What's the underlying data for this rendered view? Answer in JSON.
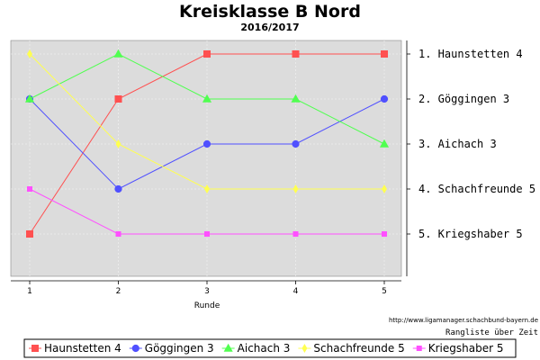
{
  "chart_data": {
    "type": "line",
    "title": "Kreisklasse B Nord",
    "subtitle": "2016/2017",
    "xlabel": "Runde",
    "x": [
      1,
      2,
      3,
      4,
      5
    ],
    "ylim": [
      1,
      5
    ],
    "y_inverted": true,
    "grid": true,
    "background": "#dcdcdc",
    "rank_labels": [
      "1. Haunstetten 4",
      "2. Göggingen 3",
      "3. Aichach 3",
      "4. Schachfreunde 5",
      "5. Kriegshaber 5"
    ],
    "series": [
      {
        "name": "Haunstetten 4",
        "values": [
          5,
          2,
          1,
          1,
          1
        ],
        "color": "#ff5050",
        "marker": "square"
      },
      {
        "name": "Göggingen 3",
        "values": [
          2,
          4,
          3,
          3,
          2
        ],
        "color": "#5050ff",
        "marker": "circle"
      },
      {
        "name": "Aichach 3",
        "values": [
          2,
          1,
          2,
          2,
          3
        ],
        "color": "#50ff50",
        "marker": "triangle"
      },
      {
        "name": "Schachfreunde 5",
        "values": [
          1,
          3,
          4,
          4,
          4
        ],
        "color": "#ffff50",
        "marker": "diamond"
      },
      {
        "name": "Kriegshaber 5",
        "values": [
          4,
          5,
          5,
          5,
          5
        ],
        "color": "#ff50ff",
        "marker": "small-square"
      }
    ],
    "legend": "bottom",
    "source_url": "http://www.ligamanager.schachbund-bayern.de",
    "note": "Rangliste über Zeit"
  }
}
